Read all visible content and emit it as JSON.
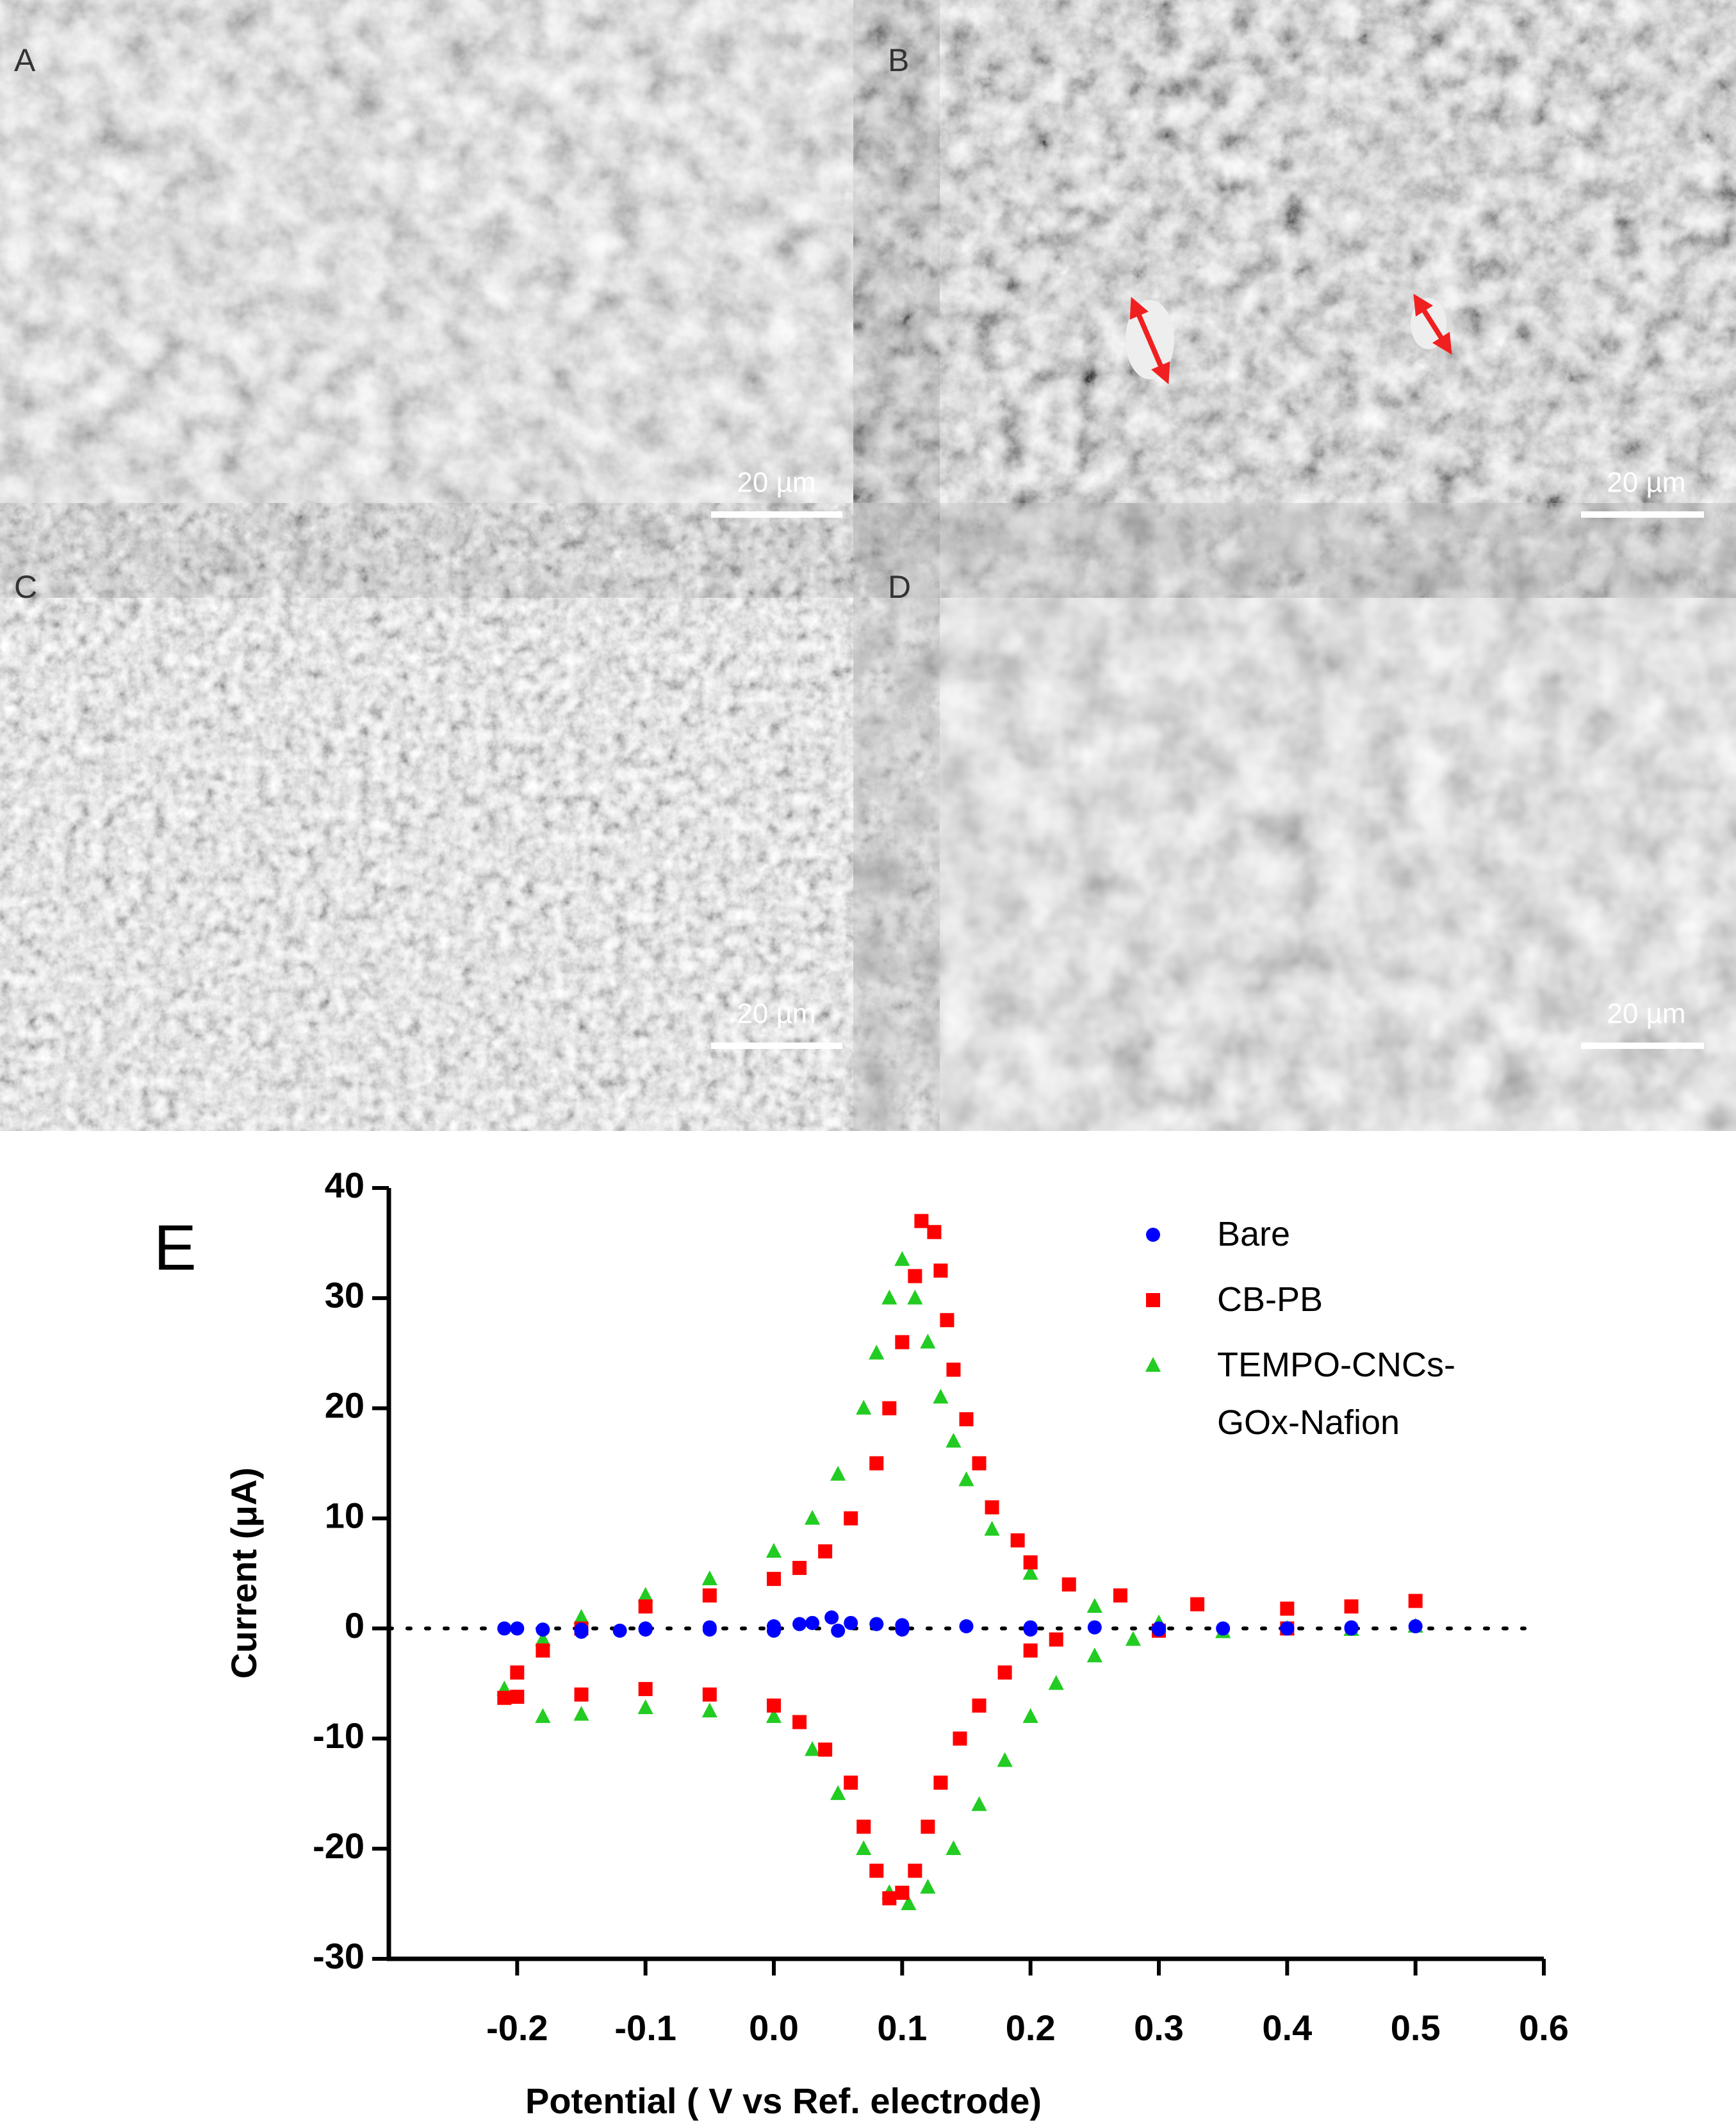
{
  "panels": [
    {
      "label": "A",
      "scale_bar": "20 µm"
    },
    {
      "label": "B",
      "scale_bar": "20 µm"
    },
    {
      "label": "C",
      "scale_bar": "20 µm"
    },
    {
      "label": "D",
      "scale_bar": "20 µm"
    }
  ],
  "chart_data": {
    "type": "scatter",
    "panel_label": "E",
    "x_label": "Potential ( V vs Ref. electrode)",
    "y_label": "Current (μA)",
    "xlim": [
      -0.3,
      0.6
    ],
    "ylim": [
      -30,
      40
    ],
    "xticks": [
      -0.2,
      -0.1,
      {
        "value": 0,
        "label": "0.0"
      },
      0.1,
      0.2,
      0.3,
      0.4,
      0.5,
      0.6
    ],
    "yticks": [
      -30,
      -20,
      -10,
      0,
      10,
      20,
      30,
      40
    ],
    "series": [
      {
        "name": "Bare",
        "color": "#0000ff",
        "marker": "circle",
        "x": [
          -0.21,
          -0.18,
          -0.15,
          -0.12,
          -0.1,
          -0.05,
          0,
          0.02,
          0.03,
          0.045,
          0.06,
          0.08,
          0.1,
          0.15,
          0.2,
          0.25,
          0.3,
          0.35,
          0.4,
          0.45,
          0.5,
          0.45,
          0.4,
          0.3,
          0.2,
          0.1,
          0.05,
          0,
          -0.05,
          -0.1,
          -0.15,
          -0.2
        ],
        "values": [
          0,
          -0.1,
          -0.3,
          -0.2,
          0,
          0.1,
          0.2,
          0.4,
          0.5,
          1,
          0.5,
          0.4,
          0.3,
          0.2,
          0.1,
          0.1,
          0,
          0,
          0,
          0.1,
          0.2,
          0,
          0,
          -0.1,
          -0.1,
          -0.1,
          -0.2,
          -0.2,
          -0.1,
          -0.1,
          -0.1,
          0
        ]
      },
      {
        "name": "CB-PB",
        "color": "#ff0000",
        "marker": "square",
        "x": [
          -0.21,
          -0.2,
          -0.18,
          -0.15,
          -0.1,
          -0.05,
          0,
          0.02,
          0.04,
          0.06,
          0.08,
          0.09,
          0.1,
          0.11,
          0.115,
          0.125,
          0.13,
          0.135,
          0.14,
          0.15,
          0.16,
          0.17,
          0.19,
          0.2,
          0.23,
          0.27,
          0.33,
          0.4,
          0.45,
          0.5,
          0.4,
          0.3,
          0.22,
          0.2,
          0.18,
          0.16,
          0.145,
          0.13,
          0.12,
          0.11,
          0.1,
          0.09,
          0.08,
          0.07,
          0.06,
          0.04,
          0.02,
          0,
          -0.05,
          -0.1,
          -0.15,
          -0.2
        ],
        "values": [
          -6.3,
          -4,
          -2,
          0,
          2,
          3,
          4.5,
          5.5,
          7,
          10,
          15,
          20,
          26,
          32,
          37,
          36,
          32.5,
          28,
          23.5,
          19,
          15,
          11,
          8,
          6,
          4,
          3,
          2.2,
          1.8,
          2,
          2.5,
          0,
          -0.2,
          -1,
          -2,
          -4,
          -7,
          -10,
          -14,
          -18,
          -22,
          -24,
          -24.5,
          -22,
          -18,
          -14,
          -11,
          -8.5,
          -7,
          -6,
          -5.5,
          -6,
          -6.2
        ]
      },
      {
        "name": "TEMPO-CNCs-GOx-Nafion",
        "color": "#22cc22",
        "marker": "triangle",
        "x": [
          -0.21,
          -0.18,
          -0.15,
          -0.1,
          -0.05,
          0,
          0.03,
          0.05,
          0.07,
          0.08,
          0.09,
          0.1,
          0.11,
          0.12,
          0.13,
          0.14,
          0.15,
          0.17,
          0.2,
          0.25,
          0.3,
          0.4,
          0.5,
          0.45,
          0.35,
          0.28,
          0.25,
          0.22,
          0.2,
          0.18,
          0.16,
          0.14,
          0.12,
          0.105,
          0.09,
          0.07,
          0.05,
          0.03,
          0,
          -0.05,
          -0.1,
          -0.15,
          -0.18
        ],
        "values": [
          -5.5,
          -1,
          1,
          3,
          4.5,
          7,
          10,
          14,
          20,
          25,
          30,
          33.5,
          30,
          26,
          21,
          17,
          13.5,
          9,
          5,
          2,
          0.5,
          0,
          0.2,
          -0.1,
          -0.3,
          -1,
          -2.5,
          -5,
          -8,
          -12,
          -16,
          -20,
          -23.5,
          -25,
          -24,
          -20,
          -15,
          -11,
          -8,
          -7.5,
          -7.2,
          -7.8,
          -8
        ]
      }
    ]
  }
}
